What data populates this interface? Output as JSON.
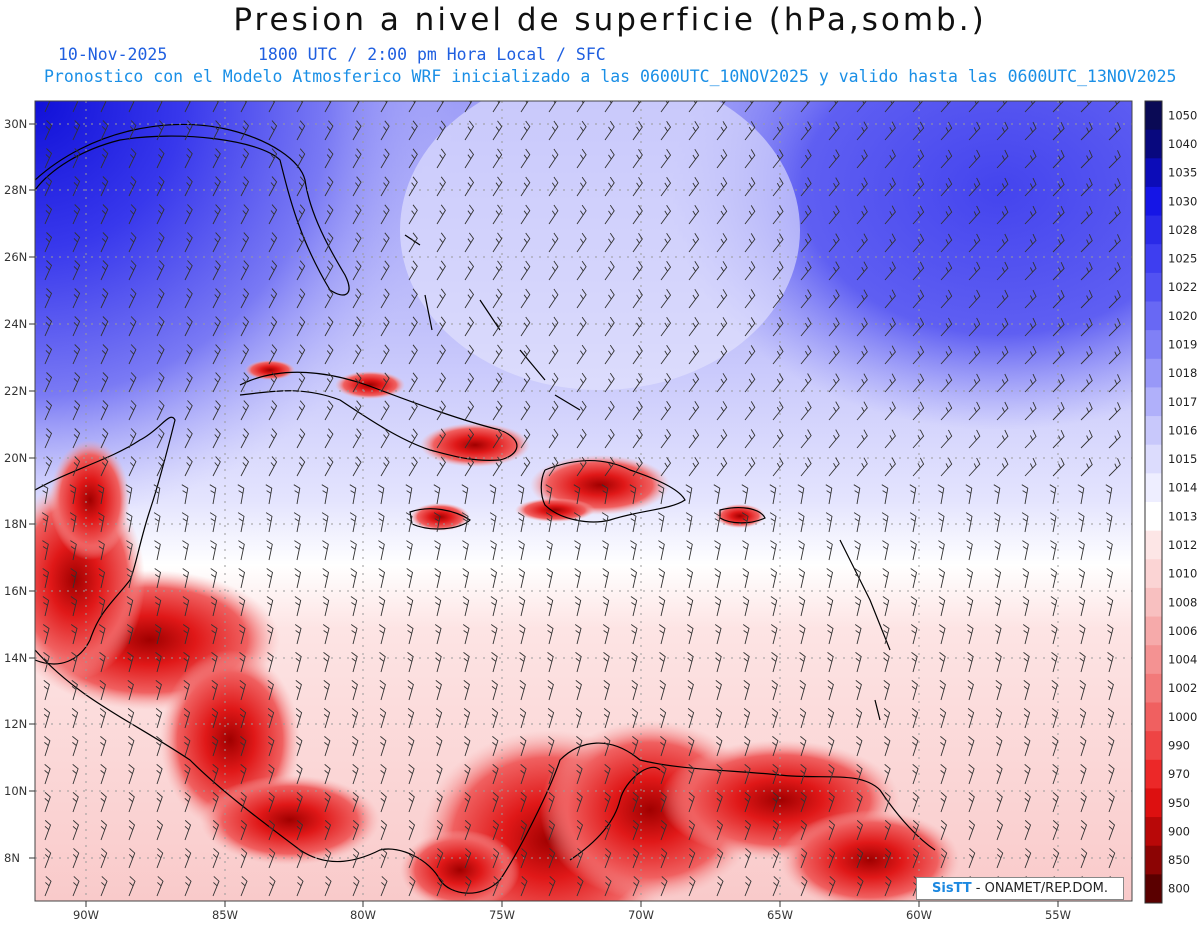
{
  "header": {
    "title": "Presion a nivel de superficie (hPa,somb.)",
    "date": "10-Nov-2025",
    "valid_time": "1800 UTC / 2:00 pm Hora Local / SFC",
    "description": "Pronostico con el Modelo Atmosferico WRF inicializado a las 0600UTC_10NOV2025 y valido hasta las  0600UTC_13NOV2025"
  },
  "map": {
    "lat_labels": [
      "30N",
      "28N",
      "26N",
      "24N",
      "22N",
      "20N",
      "18N",
      "16N",
      "14N",
      "12N",
      "10N",
      "8N"
    ],
    "lon_labels": [
      "90W",
      "85W",
      "80W",
      "75W",
      "70W",
      "65W",
      "60W",
      "55W"
    ]
  },
  "colorbar": {
    "levels": [
      "1050",
      "1040",
      "1035",
      "1030",
      "1028",
      "1025",
      "1022",
      "1020",
      "1019",
      "1018",
      "1017",
      "1016",
      "1015",
      "1014",
      "1013",
      "1012",
      "1010",
      "1008",
      "1006",
      "1004",
      "1002",
      "1000",
      "990",
      "970",
      "950",
      "900",
      "850",
      "800"
    ],
    "colors": [
      "#0a0a55",
      "#08087e",
      "#0c0cb8",
      "#1515e6",
      "#2a2ae8",
      "#3e3ef0",
      "#5252f2",
      "#6868f4",
      "#8080f6",
      "#9898f8",
      "#b0b0fa",
      "#c8c8fb",
      "#dcdcfd",
      "#eeeeff",
      "#ffffff",
      "#fde6e6",
      "#fbd4d4",
      "#f8c0c0",
      "#f6aaaa",
      "#f49292",
      "#f27a7a",
      "#f06060",
      "#ee4444",
      "#ec2828",
      "#dd1010",
      "#b80808",
      "#8c0404",
      "#5a0000"
    ]
  },
  "credit": {
    "logo": "SisTT",
    "org": " - ONAMET/REP.DOM."
  }
}
